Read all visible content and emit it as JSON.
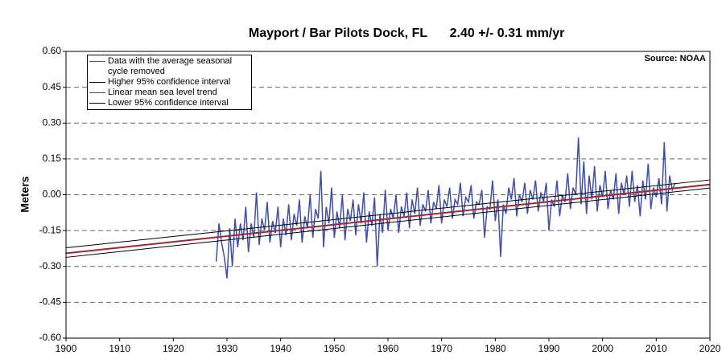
{
  "chart_data": {
    "type": "line",
    "title": "Mayport / Bar Pilots Dock, FL",
    "subtitle": "2.40 +/- 0.31 mm/yr",
    "annotation": "Source: NOAA",
    "y_label": "Meters",
    "xlim": [
      1900,
      2020
    ],
    "xticks": [
      1900,
      1910,
      1920,
      1930,
      1940,
      1950,
      1960,
      1970,
      1980,
      1990,
      2000,
      2010,
      2020
    ],
    "ylim": [
      -0.6,
      0.6
    ],
    "yticks": [
      {
        "value": 0.6,
        "label": "0.60"
      },
      {
        "value": 0.45,
        "label": "0.45"
      },
      {
        "value": 0.3,
        "label": "0.30"
      },
      {
        "value": 0.15,
        "label": "0.15"
      },
      {
        "value": 0,
        "label": "0.00"
      },
      {
        "value": -0.15,
        "label": "-0.15"
      },
      {
        "value": -0.3,
        "label": "-0.30"
      },
      {
        "value": -0.45,
        "label": "-0.45"
      },
      {
        "value": -0.6,
        "label": "-0.60"
      }
    ],
    "grid": true,
    "legend": "upper left",
    "series": [
      {
        "name": "Data with the average seasonal cycle removed",
        "color": "#3f4fa8",
        "x": [
          1928,
          1928.5,
          1929,
          1929.5,
          1930,
          1930.5,
          1931,
          1931.5,
          1932,
          1932.5,
          1933,
          1933.5,
          1934,
          1934.5,
          1935,
          1935.5,
          1936,
          1936.5,
          1937,
          1937.5,
          1938,
          1938.5,
          1939,
          1939.5,
          1940,
          1940.5,
          1941,
          1941.5,
          1942,
          1942.5,
          1943,
          1943.5,
          1944,
          1944.5,
          1945,
          1945.5,
          1946,
          1946.5,
          1947,
          1947.5,
          1948,
          1948.5,
          1949,
          1949.5,
          1950,
          1950.5,
          1951,
          1951.5,
          1952,
          1952.5,
          1953,
          1953.5,
          1954,
          1954.5,
          1955,
          1955.5,
          1956,
          1956.5,
          1957,
          1957.5,
          1958,
          1958.5,
          1959,
          1959.5,
          1960,
          1960.5,
          1961,
          1961.5,
          1962,
          1962.5,
          1963,
          1963.5,
          1964,
          1964.5,
          1965,
          1965.5,
          1966,
          1966.5,
          1967,
          1967.5,
          1968,
          1968.5,
          1969,
          1969.5,
          1970,
          1970.5,
          1971,
          1971.5,
          1972,
          1972.5,
          1973,
          1973.5,
          1974,
          1974.5,
          1975,
          1975.5,
          1976,
          1976.5,
          1977,
          1977.5,
          1978,
          1978.5,
          1979,
          1979.5,
          1980,
          1980.5,
          1981,
          1981.5,
          1982,
          1982.5,
          1983,
          1983.5,
          1984,
          1984.5,
          1985,
          1985.5,
          1986,
          1986.5,
          1987,
          1987.5,
          1988,
          1988.5,
          1989,
          1989.5,
          1990,
          1990.5,
          1991,
          1991.5,
          1992,
          1992.5,
          1993,
          1993.5,
          1994,
          1994.5,
          1995,
          1995.5,
          1996,
          1996.5,
          1997,
          1997.5,
          1998,
          1998.5,
          1999,
          1999.5,
          2000,
          2000.5,
          2001,
          2001.5,
          2002,
          2002.5,
          2003,
          2003.5,
          2004,
          2004.5,
          2005,
          2005.5,
          2006,
          2006.5,
          2007,
          2007.5,
          2008,
          2008.5,
          2009,
          2009.5,
          2010,
          2010.5,
          2011,
          2011.5,
          2012,
          2012.5,
          2013,
          2013.5
        ],
        "values": [
          -0.28,
          -0.12,
          -0.2,
          -0.26,
          -0.35,
          -0.14,
          -0.3,
          -0.1,
          -0.22,
          -0.12,
          -0.19,
          -0.05,
          -0.24,
          -0.12,
          -0.18,
          0.01,
          -0.21,
          -0.1,
          -0.15,
          -0.03,
          -0.2,
          -0.11,
          -0.16,
          -0.05,
          -0.22,
          -0.1,
          -0.17,
          -0.04,
          -0.19,
          -0.08,
          -0.13,
          -0.02,
          -0.2,
          -0.09,
          -0.14,
          0.0,
          -0.18,
          -0.06,
          -0.1,
          0.1,
          -0.22,
          -0.05,
          -0.12,
          0.03,
          -0.18,
          -0.07,
          -0.14,
          0.0,
          -0.19,
          -0.06,
          -0.11,
          -0.02,
          -0.17,
          -0.04,
          -0.12,
          0.01,
          -0.2,
          -0.07,
          -0.13,
          -0.01,
          -0.3,
          -0.08,
          -0.16,
          0.02,
          -0.15,
          -0.06,
          -0.1,
          0.0,
          -0.16,
          -0.05,
          -0.09,
          0.01,
          -0.14,
          -0.02,
          -0.08,
          0.03,
          -0.13,
          -0.04,
          -0.07,
          0.02,
          -0.12,
          -0.03,
          -0.06,
          0.04,
          -0.12,
          -0.02,
          -0.05,
          0.03,
          -0.1,
          -0.02,
          -0.04,
          0.05,
          -0.09,
          -0.01,
          -0.03,
          0.04,
          -0.1,
          -0.03,
          -0.04,
          0.02,
          -0.18,
          -0.05,
          -0.06,
          0.06,
          -0.11,
          -0.02,
          -0.26,
          -0.04,
          -0.08,
          0.03,
          -0.02,
          0.07,
          -0.09,
          0.0,
          -0.03,
          0.05,
          -0.08,
          0.02,
          -0.02,
          0.06,
          -0.07,
          0.01,
          -0.03,
          0.05,
          -0.15,
          -0.02,
          -0.05,
          0.06,
          -0.09,
          0.0,
          -0.03,
          0.09,
          -0.06,
          0.03,
          0.0,
          0.24,
          -0.04,
          0.14,
          -0.08,
          0.08,
          -0.02,
          0.12,
          -0.07,
          0.04,
          -0.01,
          0.1,
          -0.06,
          0.02,
          -0.02,
          0.09,
          -0.08,
          0.05,
          0.0,
          0.08,
          -0.05,
          0.1,
          -0.03,
          0.04,
          -0.09,
          0.06,
          -0.02,
          0.13,
          -0.06,
          0.03,
          -0.01,
          0.07,
          -0.04,
          0.22,
          -0.07,
          0.08,
          0.02,
          0.05
        ]
      },
      {
        "name": "Higher 95% confidence interval",
        "color": "#000000",
        "x": [
          1900,
          2020
        ],
        "values": [
          -0.222,
          0.062
        ]
      },
      {
        "name": "Linear mean sea level trend",
        "color": "#a0282a",
        "x": [
          1900,
          2020
        ],
        "values": [
          -0.245,
          0.043
        ]
      },
      {
        "name": "Lower 95% confidence interval",
        "color": "#000000",
        "x": [
          1900,
          2020
        ],
        "values": [
          -0.262,
          0.028
        ]
      }
    ]
  }
}
